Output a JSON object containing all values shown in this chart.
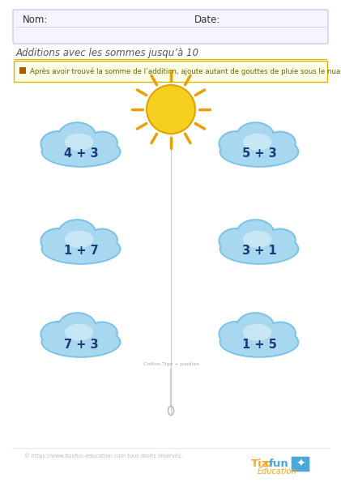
{
  "title": "Additions avec les sommes jusqu’à 10",
  "nom_label": "Nom:",
  "date_label": "Date:",
  "instruction": "Après avoir trouvé la somme de l’addition, ajoute autant de gouttes de pluie sous le nuage.",
  "problems": [
    {
      "text": "4 + 3"
    },
    {
      "text": "5 + 3"
    },
    {
      "text": "1 + 7"
    },
    {
      "text": "3 + 1"
    },
    {
      "text": "7 + 3"
    },
    {
      "text": "1 + 5"
    }
  ],
  "cloud_fill_outer": "#a8d8f0",
  "cloud_fill_inner": "#d6eef8",
  "cloud_stroke": "#7dc3e8",
  "text_color": "#1a3a7a",
  "sun_color": "#f5d020",
  "sun_ray_color": "#e8a000",
  "bg_color": "#ffffff",
  "instruction_bg": "#fffde7",
  "instruction_border": "#d4b800",
  "footer_text": "© https://www.tizofun-education.com tous droits réservés.",
  "tizofun_orange": "#f5a623",
  "tizofun_blue": "#4aa8d8",
  "vertical_line_color": "#cccccc",
  "rain_label": "Cotton Tige + panties",
  "header_bg": "#f5f5ff",
  "header_border": "#c0c0e0",
  "bullet_color": "#b05800"
}
